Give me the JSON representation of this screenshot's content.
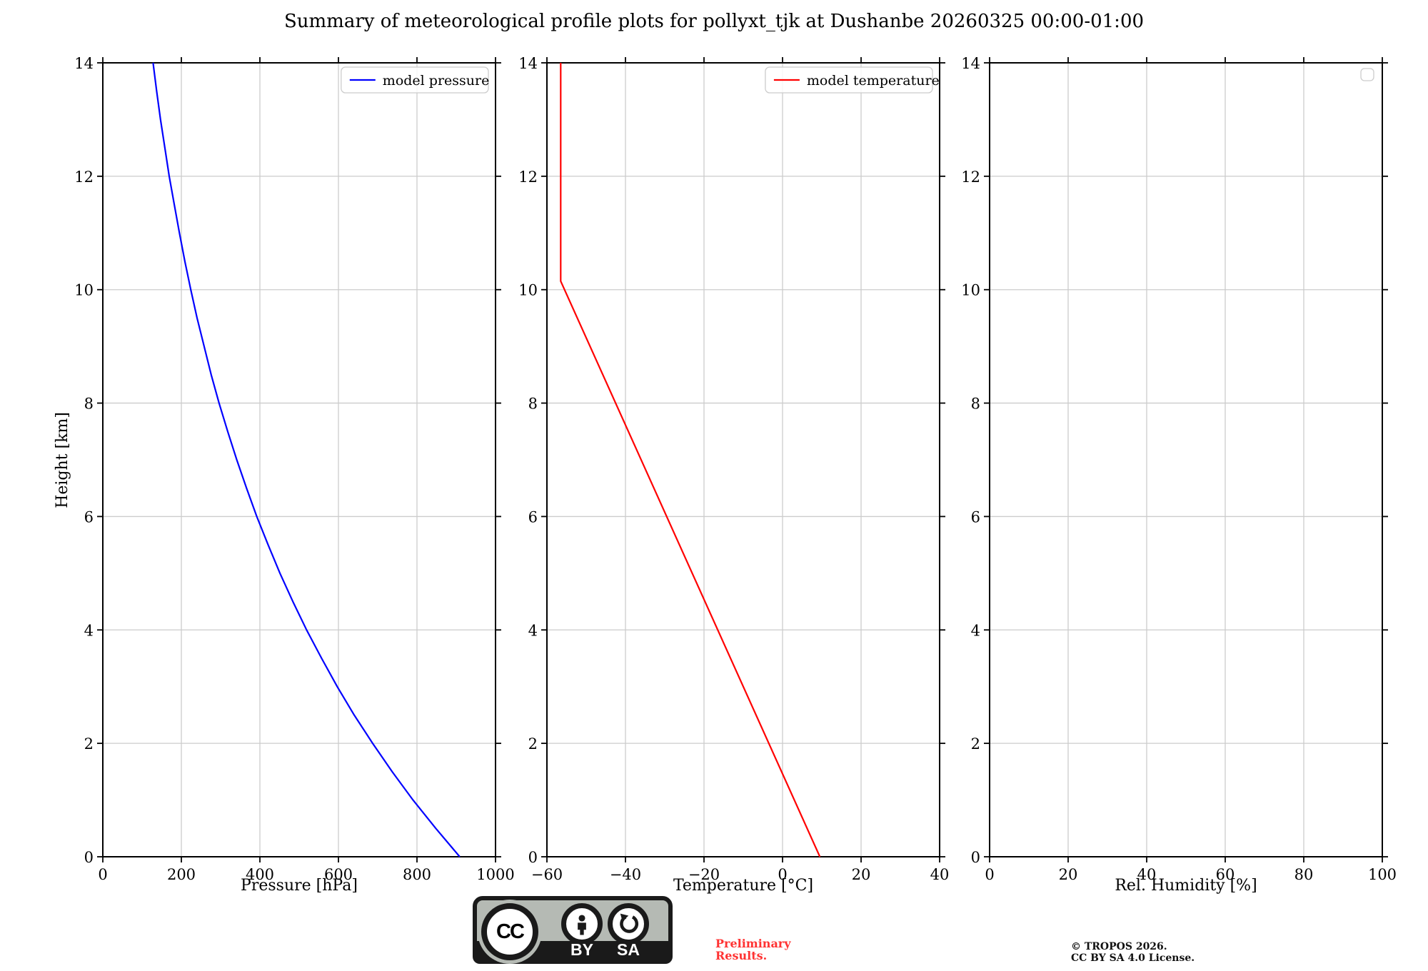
{
  "title": "Summary of meteorological profile plots for pollyxt_tjk at Dushanbe 20260325 00:00-01:00",
  "ylabel": "Height [km]",
  "colors": {
    "pressure_line": "#0000ff",
    "temperature_line": "#ff0000",
    "grid": "#cccccc",
    "spine": "#000000",
    "legend_border": "#cccccc",
    "preliminary_text": "#ff3333",
    "badge_gray": "#b5bab4",
    "badge_black": "#1a1a1a"
  },
  "chart_data": [
    {
      "type": "line",
      "title": "",
      "xlabel": "Pressure [hPa]",
      "ylabel": "Height [km]",
      "xlim": [
        0,
        1000
      ],
      "ylim": [
        0,
        14
      ],
      "xticks": [
        0,
        200,
        400,
        600,
        800,
        1000
      ],
      "xticklabels": [
        "0",
        "200",
        "400",
        "600",
        "800",
        "1000"
      ],
      "yticks": [
        0,
        2,
        4,
        6,
        8,
        10,
        12,
        14
      ],
      "yticklabels": [
        "0",
        "2",
        "4",
        "6",
        "8",
        "10",
        "12",
        "14"
      ],
      "grid": true,
      "legend_position": "upper right",
      "legend_entries": [
        {
          "label": "model pressure",
          "color": "#0000ff"
        }
      ],
      "series": [
        {
          "name": "model pressure",
          "color": "#0000ff",
          "x": [
            909,
            848,
            790,
            737,
            687,
            640,
            597,
            557,
            519,
            484,
            451,
            421,
            392,
            366,
            341,
            318,
            296,
            276,
            258,
            240,
            224,
            209,
            195,
            182,
            169,
            158,
            147,
            137,
            128
          ],
          "y": [
            0,
            0.5,
            1,
            1.5,
            2,
            2.5,
            3,
            3.5,
            4,
            4.5,
            5,
            5.5,
            6,
            6.5,
            7,
            7.5,
            8,
            8.5,
            9,
            9.5,
            10,
            10.5,
            11,
            11.5,
            12,
            12.5,
            13,
            13.5,
            14
          ]
        }
      ]
    },
    {
      "type": "line",
      "title": "",
      "xlabel": "Temperature [°C]",
      "ylabel": "Height [km]",
      "xlim": [
        -60,
        40
      ],
      "ylim": [
        0,
        14
      ],
      "xticks": [
        -60,
        -40,
        -20,
        0,
        20,
        40
      ],
      "xticklabels": [
        "−60",
        "−40",
        "−20",
        "0",
        "20",
        "40"
      ],
      "yticks": [
        0,
        2,
        4,
        6,
        8,
        10,
        12,
        14
      ],
      "yticklabels": [
        "0",
        "2",
        "4",
        "6",
        "8",
        "10",
        "12",
        "14"
      ],
      "grid": true,
      "legend_position": "upper right",
      "legend_entries": [
        {
          "label": "model temperature",
          "color": "#ff0000"
        }
      ],
      "series": [
        {
          "name": "model temperature",
          "color": "#ff0000",
          "x": [
            9.5,
            -56.5,
            -56.5
          ],
          "y": [
            0,
            10.15,
            14
          ]
        }
      ]
    },
    {
      "type": "line",
      "title": "",
      "xlabel": "Rel. Humidity [%]",
      "ylabel": "Height [km]",
      "xlim": [
        0,
        100
      ],
      "ylim": [
        0,
        14
      ],
      "xticks": [
        0,
        20,
        40,
        60,
        80,
        100
      ],
      "xticklabels": [
        "0",
        "20",
        "40",
        "60",
        "80",
        "100"
      ],
      "yticks": [
        0,
        2,
        4,
        6,
        8,
        10,
        12,
        14
      ],
      "yticklabels": [
        "0",
        "2",
        "4",
        "6",
        "8",
        "10",
        "12",
        "14"
      ],
      "grid": true,
      "legend_position": "upper right",
      "legend_entries": [],
      "series": []
    }
  ],
  "footer": {
    "cc": {
      "cc_text": "CC",
      "label_by": "BY",
      "label_sa": "SA"
    },
    "preliminary_line1": "Preliminary",
    "preliminary_line2": "Results.",
    "copyright_line1": "© TROPOS 2026.",
    "copyright_line2": "CC BY SA 4.0 License."
  }
}
